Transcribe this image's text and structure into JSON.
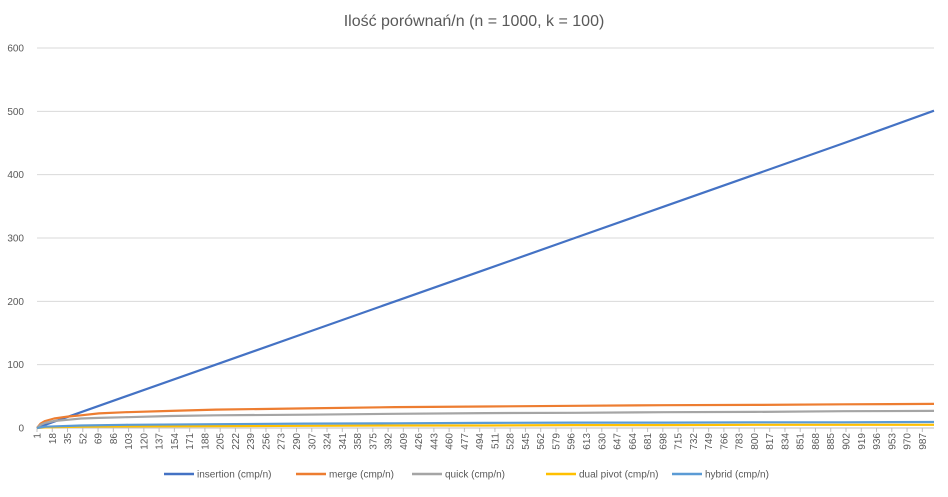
{
  "chart_data": {
    "type": "line",
    "title": "Ilość porównań/n (n = 1000, k = 100)",
    "xlabel": "",
    "ylabel": "",
    "ylim": [
      0,
      600
    ],
    "yticks": [
      0,
      100,
      200,
      300,
      400,
      500,
      600
    ],
    "xlim": [
      1,
      1000
    ],
    "xtick_labels": [
      "1",
      "18",
      "35",
      "52",
      "69",
      "86",
      "103",
      "120",
      "137",
      "154",
      "171",
      "188",
      "205",
      "222",
      "239",
      "256",
      "273",
      "290",
      "307",
      "324",
      "341",
      "358",
      "375",
      "392",
      "409",
      "426",
      "443",
      "460",
      "477",
      "494",
      "511",
      "528",
      "545",
      "562",
      "579",
      "596",
      "613",
      "630",
      "647",
      "664",
      "681",
      "698",
      "715",
      "732",
      "749",
      "766",
      "783",
      "800",
      "817",
      "834",
      "851",
      "868",
      "885",
      "902",
      "919",
      "936",
      "953",
      "970",
      "987"
    ],
    "grid": "horizontal",
    "legend": "bottom",
    "series": [
      {
        "name": "insertion (cmp/n)",
        "color": "#4472C4",
        "x": [
          1,
          10,
          50,
          100,
          200,
          300,
          400,
          500,
          600,
          700,
          800,
          900,
          1000
        ],
        "y": [
          0,
          5,
          25,
          50,
          100,
          150,
          200,
          250,
          300,
          350,
          400,
          450,
          501
        ]
      },
      {
        "name": "merge (cmp/n)",
        "color": "#ED7D31",
        "x": [
          1,
          5,
          10,
          20,
          35,
          50,
          70,
          100,
          150,
          200,
          300,
          400,
          500,
          600,
          700,
          800,
          900,
          1000
        ],
        "y": [
          0,
          7,
          11,
          15,
          18,
          20,
          23,
          25,
          27,
          29,
          31,
          33,
          34,
          35,
          36,
          36.5,
          37.5,
          38
        ]
      },
      {
        "name": "quick (cmp/n)",
        "color": "#A5A5A5",
        "x": [
          1,
          5,
          10,
          20,
          35,
          50,
          70,
          100,
          150,
          200,
          300,
          400,
          500,
          600,
          700,
          800,
          900,
          1000
        ],
        "y": [
          0,
          5,
          8,
          11,
          13,
          15,
          16,
          17,
          19,
          20,
          21,
          22.5,
          23.5,
          24,
          25,
          25.5,
          26.5,
          27
        ]
      },
      {
        "name": "dual pivot (cmp/n)",
        "color": "#FFC000",
        "x": [
          1,
          10,
          50,
          100,
          200,
          300,
          400,
          500,
          600,
          700,
          800,
          900,
          1000
        ],
        "y": [
          0,
          1,
          2,
          2.5,
          3,
          3.5,
          4,
          4,
          4.5,
          4.5,
          5,
          5,
          5
        ]
      },
      {
        "name": "hybrid (cmp/n)",
        "color": "#5B9BD5",
        "x": [
          1,
          10,
          50,
          100,
          200,
          300,
          400,
          500,
          600,
          700,
          800,
          900,
          1000
        ],
        "y": [
          0,
          2,
          4,
          5,
          6,
          7,
          7.5,
          8,
          8.5,
          8.5,
          9,
          9,
          9.5
        ]
      }
    ]
  }
}
